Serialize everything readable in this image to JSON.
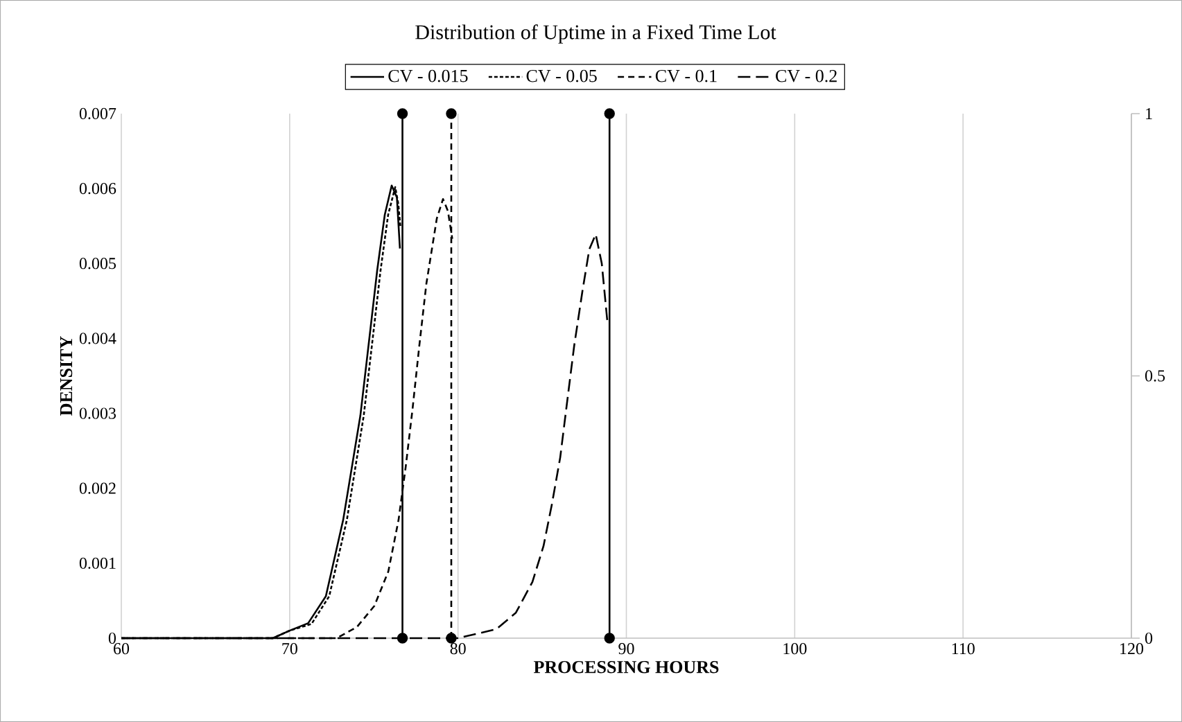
{
  "chart_data": {
    "type": "line",
    "title": "Distribution of Uptime in a Fixed Time Lot",
    "xlabel": "PROCESSING HOURS",
    "ylabel": "DENSITY",
    "xlim": [
      60,
      120
    ],
    "xticks": [
      60,
      70,
      80,
      90,
      100,
      110,
      120
    ],
    "ylim": [
      0,
      0.007
    ],
    "yticks": [
      0,
      0.001,
      0.002,
      0.003,
      0.004,
      0.005,
      0.006,
      0.007
    ],
    "y2lim": [
      0,
      1
    ],
    "y2ticks": [
      0,
      0.5,
      1
    ],
    "grid": "x",
    "legend": "top",
    "series": [
      {
        "name": "CV - 0.015",
        "color": "#000000",
        "line_style": "solid",
        "x": [
          60,
          66,
          68,
          69,
          70,
          71.1,
          72.15,
          73.18,
          74.2,
          74.8,
          75.2,
          75.65,
          76.06,
          76.37,
          76.55
        ],
        "values": [
          0,
          0,
          0,
          0,
          0.0001,
          0.0002,
          0.00056,
          0.00158,
          0.00297,
          0.00413,
          0.00491,
          0.00565,
          0.00604,
          0.00588,
          0.0052
        ]
      },
      {
        "name": "CV - 0.05",
        "color": "#000000",
        "line_style": "dotted",
        "x": [
          60,
          68,
          69,
          70,
          71.3,
          72.35,
          73.4,
          74.4,
          75.0,
          75.4,
          75.85,
          76.27,
          76.45,
          76.58
        ],
        "values": [
          0,
          0,
          0,
          0.0001,
          0.00019,
          0.00056,
          0.00158,
          0.00297,
          0.00413,
          0.00491,
          0.00565,
          0.00602,
          0.0058,
          0.00549
        ]
      },
      {
        "name": "CV - 0.1",
        "color": "#000000",
        "line_style": "dashed",
        "x": [
          60,
          70,
          72.8,
          74.0,
          75.03,
          75.86,
          76.47,
          76.89,
          77.3,
          77.7,
          78.12,
          78.74,
          79.11,
          79.4,
          79.66
        ],
        "values": [
          0,
          0,
          0,
          0.00015,
          0.00043,
          0.00089,
          0.00158,
          0.00228,
          0.00306,
          0.0039,
          0.00473,
          0.0056,
          0.00586,
          0.0057,
          0.00533
        ]
      },
      {
        "name": "CV - 0.2",
        "color": "#000000",
        "line_style": "long dashed",
        "x": [
          60,
          76,
          80,
          82.28,
          83.44,
          84.42,
          85.08,
          85.58,
          86.07,
          86.48,
          86.9,
          87.39,
          87.8,
          88.18,
          88.54,
          88.87
        ],
        "values": [
          0,
          0,
          0,
          0.00012,
          0.00034,
          0.00075,
          0.00123,
          0.00179,
          0.00241,
          0.00315,
          0.0039,
          0.00463,
          0.00519,
          0.00539,
          0.005,
          0.00423
        ]
      },
      {
        "color": "#000000",
        "line_style": "solid",
        "marker": "circle",
        "axis": "y2",
        "x": [
          76.7,
          76.7
        ],
        "values": [
          0,
          1
        ]
      },
      {
        "color": "#000000",
        "line_style": "dashed",
        "marker": "circle",
        "axis": "y2",
        "x": [
          79.6,
          79.6
        ],
        "values": [
          0,
          1
        ]
      },
      {
        "color": "#000000",
        "line_style": "solid",
        "marker": "circle",
        "axis": "y2",
        "x": [
          89.0,
          89.0
        ],
        "values": [
          0,
          1
        ]
      }
    ]
  }
}
